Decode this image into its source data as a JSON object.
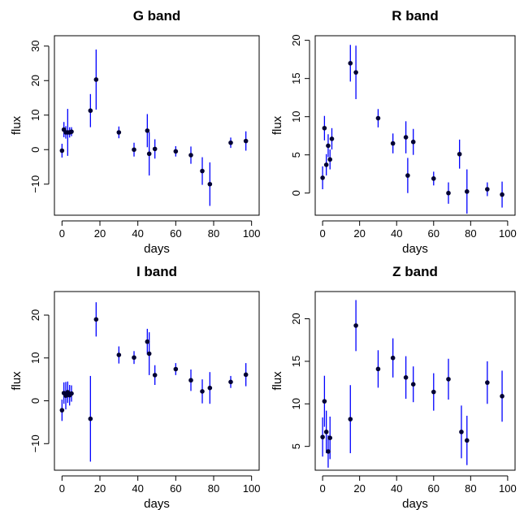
{
  "chart_data": [
    {
      "type": "scatter",
      "title": "G band",
      "xlabel": "days",
      "ylabel": "flux",
      "xlim": [
        -4,
        104
      ],
      "ylim": [
        -19,
        33
      ],
      "xticks": [
        0,
        20,
        40,
        60,
        80,
        100
      ],
      "yticks": [
        -10,
        0,
        10,
        20,
        30
      ],
      "ytick_labels": [
        "−10",
        "0",
        "10",
        "20",
        "30"
      ],
      "point_color": "#000033",
      "errorbar_color": "#0000ff",
      "series": [
        {
          "x": [
            0,
            1,
            2,
            3,
            4,
            5,
            15,
            18,
            30,
            38,
            45,
            46,
            49,
            60,
            68,
            74,
            78,
            89,
            97
          ],
          "y": [
            -0.3,
            5.8,
            5.0,
            5.0,
            5.0,
            5.2,
            11.3,
            20.3,
            5.0,
            0.0,
            5.5,
            -1.2,
            0.2,
            -0.5,
            -1.6,
            -6.2,
            -10.0,
            2.0,
            2.5
          ],
          "err": [
            2.0,
            2.2,
            1.8,
            6.8,
            1.5,
            1.3,
            4.8,
            8.7,
            1.7,
            2.0,
            4.8,
            6.3,
            2.8,
            1.5,
            2.5,
            4.0,
            6.3,
            1.5,
            2.8
          ]
        }
      ]
    },
    {
      "type": "scatter",
      "title": "R band",
      "xlabel": "days",
      "ylabel": "flux",
      "xlim": [
        -4,
        104
      ],
      "ylim": [
        -2.9,
        20.6
      ],
      "xticks": [
        0,
        20,
        40,
        60,
        80,
        100
      ],
      "yticks": [
        0,
        5,
        10,
        15,
        20
      ],
      "ytick_labels": [
        "0",
        "5",
        "10",
        "15",
        "20"
      ],
      "point_color": "#000033",
      "errorbar_color": "#0000ff",
      "series": [
        {
          "x": [
            0,
            1,
            2,
            3,
            4,
            5,
            15,
            18,
            30,
            38,
            45,
            46,
            49,
            60,
            68,
            74,
            78,
            89,
            97
          ],
          "y": [
            2.0,
            8.5,
            3.7,
            6.2,
            4.4,
            7.1,
            17.0,
            15.8,
            9.8,
            6.5,
            7.3,
            2.3,
            6.7,
            1.9,
            0.0,
            5.1,
            0.2,
            0.5,
            -0.2
          ],
          "err": [
            1.5,
            1.6,
            1.4,
            1.5,
            1.3,
            1.4,
            2.4,
            3.5,
            1.2,
            1.3,
            2.1,
            2.3,
            1.7,
            0.9,
            1.4,
            1.9,
            2.9,
            0.9,
            1.7
          ]
        }
      ]
    },
    {
      "type": "scatter",
      "title": "I band",
      "xlabel": "days",
      "ylabel": "flux",
      "xlim": [
        -4,
        104
      ],
      "ylim": [
        -16.2,
        25.5
      ],
      "xticks": [
        0,
        20,
        40,
        60,
        80,
        100
      ],
      "yticks": [
        -10,
        0,
        10,
        20
      ],
      "ytick_labels": [
        "−10",
        "0",
        "10",
        "20"
      ],
      "point_color": "#000033",
      "errorbar_color": "#0000ff",
      "series": [
        {
          "x": [
            0,
            1,
            2,
            3,
            4,
            5,
            15,
            18,
            30,
            38,
            45,
            46,
            49,
            60,
            68,
            74,
            78,
            89,
            97
          ],
          "y": [
            -2.2,
            1.8,
            1.2,
            2.0,
            1.3,
            1.7,
            -4.2,
            19.0,
            10.7,
            10.1,
            13.8,
            11.0,
            6.0,
            7.4,
            4.8,
            2.2,
            3.0,
            4.4,
            6.1
          ],
          "err": [
            2.5,
            2.5,
            3.2,
            2.5,
            2.4,
            1.9,
            10.0,
            4.0,
            2.0,
            1.5,
            3.0,
            5.0,
            2.3,
            1.4,
            2.5,
            2.8,
            3.7,
            1.4,
            2.7
          ]
        }
      ]
    },
    {
      "type": "scatter",
      "title": "Z band",
      "xlabel": "days",
      "ylabel": "flux",
      "xlim": [
        -4,
        104
      ],
      "ylim": [
        2.2,
        23.2
      ],
      "xticks": [
        0,
        20,
        40,
        60,
        80,
        100
      ],
      "yticks": [
        5,
        10,
        15,
        20
      ],
      "ytick_labels": [
        "5",
        "10",
        "15",
        "20"
      ],
      "point_color": "#000033",
      "errorbar_color": "#0000ff",
      "series": [
        {
          "x": [
            0,
            1,
            2,
            3,
            4,
            15,
            18,
            30,
            38,
            45,
            49,
            60,
            68,
            75,
            78,
            89,
            97
          ],
          "y": [
            6.1,
            10.3,
            6.7,
            4.4,
            6.0,
            8.2,
            19.2,
            14.1,
            15.4,
            13.1,
            12.3,
            11.4,
            12.9,
            6.7,
            5.7,
            12.5,
            10.9
          ],
          "err": [
            2.3,
            3.0,
            2.5,
            1.9,
            2.5,
            4.0,
            3.0,
            2.2,
            2.3,
            2.5,
            2.1,
            2.2,
            2.4,
            3.1,
            2.9,
            2.5,
            3.0
          ]
        }
      ]
    }
  ]
}
